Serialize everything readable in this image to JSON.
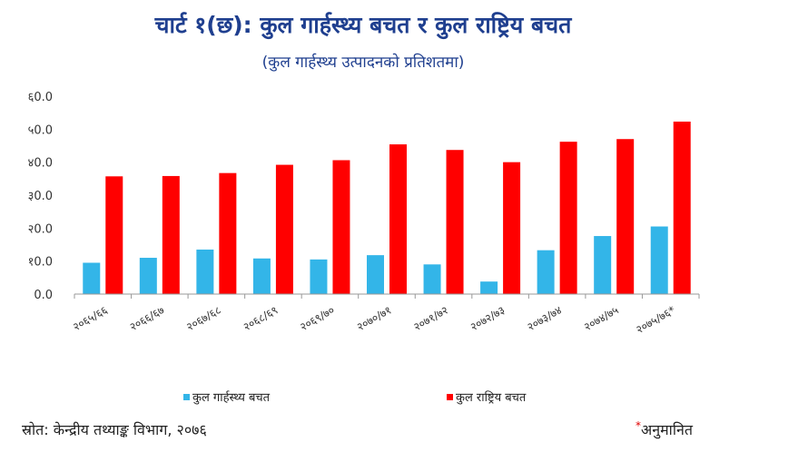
{
  "title": "चार्ट १(छ): कुल गार्हस्थ्य बचत र कुल राष्ट्रिय बचत",
  "subtitle": "(कुल गार्हस्थ्य उत्पादनको प्रतिशतमा)",
  "source": "स्रोत: केन्द्रीय तथ्याङ्क विभाग, २०७६",
  "note": "अनुमानित",
  "colors": {
    "domestic": "#33b5e8",
    "national": "#ff0000",
    "axis": "#999999"
  },
  "chart_data": {
    "type": "bar",
    "categories": [
      "२०६५/६६",
      "२०६६/६७",
      "२०६७/६८",
      "२०६८/६९",
      "२०६९/७०",
      "२०७०/७१",
      "२०७१/७२",
      "२०७२/७३",
      "२०७३/७४",
      "२०७४/७५",
      "२०७५/७६*"
    ],
    "series": [
      {
        "name": "कुल गार्हस्थ्य बचत",
        "values": [
          9.5,
          11.0,
          13.5,
          10.8,
          10.5,
          11.8,
          9.0,
          3.8,
          13.3,
          17.6,
          20.5
        ]
      },
      {
        "name": "कुल राष्ट्रिय बचत",
        "values": [
          35.7,
          35.8,
          36.7,
          39.2,
          40.6,
          45.4,
          43.7,
          40.0,
          46.2,
          47.0,
          52.3
        ]
      }
    ],
    "ylim": [
      0,
      60
    ],
    "yticks": [
      "0.0",
      "१0.0",
      "२0.0",
      "३0.0",
      "४0.0",
      "५0.0",
      "६0.0"
    ],
    "grid": false,
    "legend_position": "bottom"
  }
}
